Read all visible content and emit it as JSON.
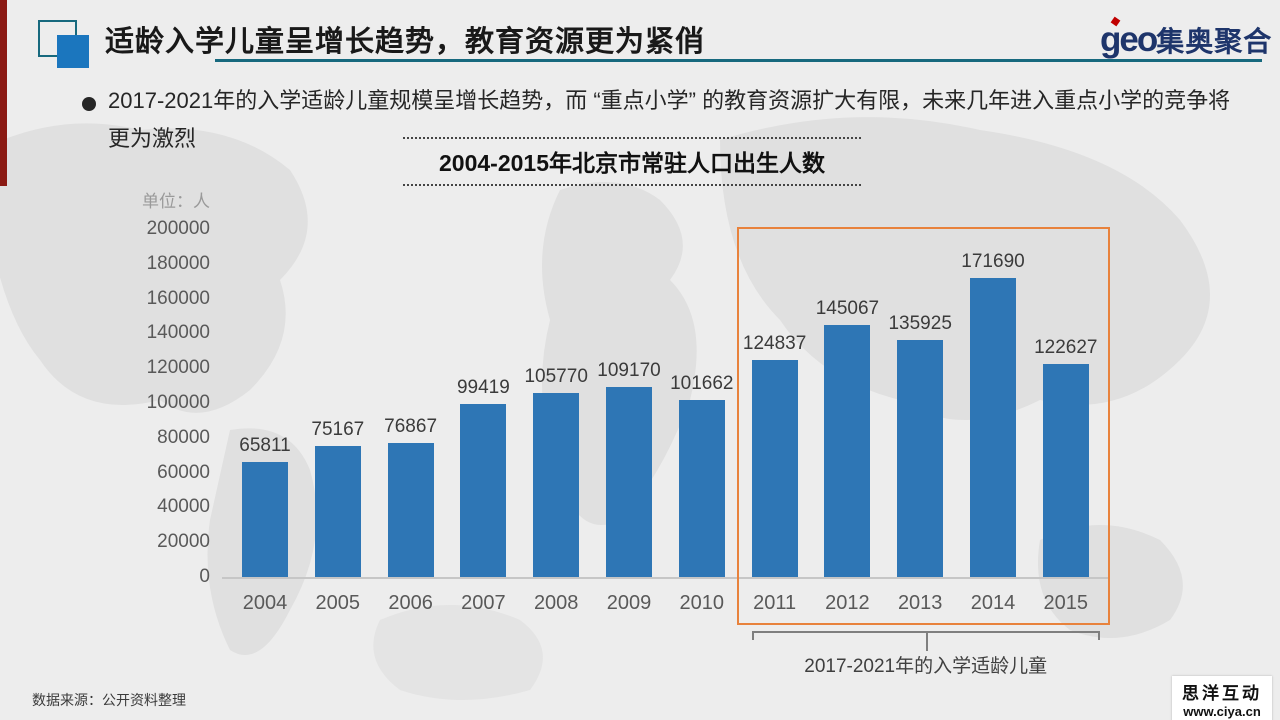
{
  "header": {
    "title": "适龄入学儿童呈增长趋势，教育资源更为紧俏",
    "logo_geo": "geo",
    "logo_cn": "集奥聚合"
  },
  "bullet": {
    "text": "2017-2021年的入学适龄儿童规模呈增长趋势，而 “重点小学” 的教育资源扩大有限，未来几年进入重点小学的竞争将更为激烈"
  },
  "chart_data": {
    "type": "bar",
    "title": "2004-2015年北京市常驻人口出生人数",
    "unit_label": "单位：人",
    "categories": [
      "2004",
      "2005",
      "2006",
      "2007",
      "2008",
      "2009",
      "2010",
      "2011",
      "2012",
      "2013",
      "2014",
      "2015"
    ],
    "values": [
      65811,
      75167,
      76867,
      99419,
      105770,
      109170,
      101662,
      124837,
      145067,
      135925,
      171690,
      122627
    ],
    "ylim": [
      0,
      200000
    ],
    "ytick_step": 20000,
    "grid": false,
    "legend": "none",
    "bar_color": "#2e76b5",
    "highlight": {
      "from": "2011",
      "to": "2015",
      "box_color": "#e8823c",
      "label": "2017-2021年的入学适龄儿童"
    }
  },
  "footer": {
    "source": "数据来源：公开资料整理",
    "watermark_line1": "思洋互动",
    "watermark_line2": "www.ciya.cn"
  },
  "colors": {
    "background": "#ededed",
    "map_shape": "#e0e0e0",
    "header_underline": "#17697e",
    "icon_blue": "#1b76be",
    "left_bar_red": "#8b1a13",
    "logo_navy": "#1e356b",
    "logo_red": "#c00000",
    "bar_blue": "#2e76b5",
    "highlight_orange": "#e8823c",
    "axis_text": "#595959"
  }
}
